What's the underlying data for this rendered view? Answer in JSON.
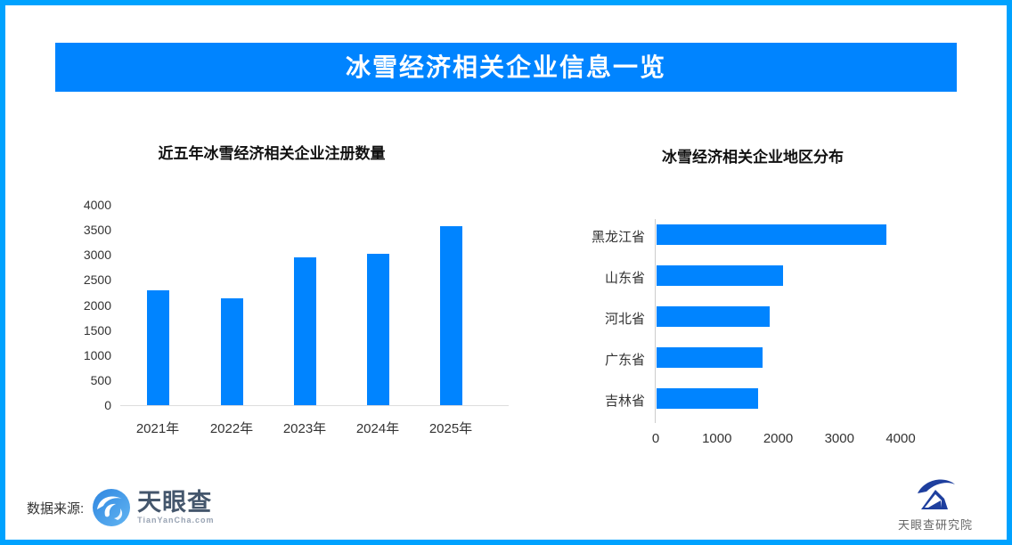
{
  "page": {
    "banner_title": "冰雪经济相关企业信息一览",
    "accent_color": "#0084ff",
    "border_color": "#00a2ff"
  },
  "chart_data": [
    {
      "type": "bar",
      "orientation": "vertical",
      "title": "近五年冰雪经济相关企业注册数量",
      "categories": [
        "2021年",
        "2022年",
        "2023年",
        "2024年",
        "2025年"
      ],
      "values": [
        2300,
        2130,
        2950,
        3020,
        3580
      ],
      "yticks": [
        0,
        500,
        1000,
        1500,
        2000,
        2500,
        3000,
        3500,
        4000
      ],
      "ylim": [
        0,
        4000
      ],
      "xlabel": "",
      "ylabel": "",
      "bar_color": "#0084ff",
      "grid": false,
      "legend": false
    },
    {
      "type": "bar",
      "orientation": "horizontal",
      "title": "冰雪经济相关企业地区分布",
      "categories": [
        "黑龙江省",
        "山东省",
        "河北省",
        "广东省",
        "吉林省"
      ],
      "values": [
        3750,
        2060,
        1840,
        1730,
        1660
      ],
      "xticks": [
        0,
        1000,
        2000,
        3000,
        4000
      ],
      "xlim": [
        0,
        4000
      ],
      "xlabel": "",
      "ylabel": "",
      "bar_color": "#0084ff",
      "grid": false,
      "legend": false
    }
  ],
  "footer": {
    "source_label": "数据来源:",
    "source_logo_name": "天眼查",
    "source_logo_sub": "TianYanCha.com",
    "research_logo_name": "天眼查研究院"
  }
}
